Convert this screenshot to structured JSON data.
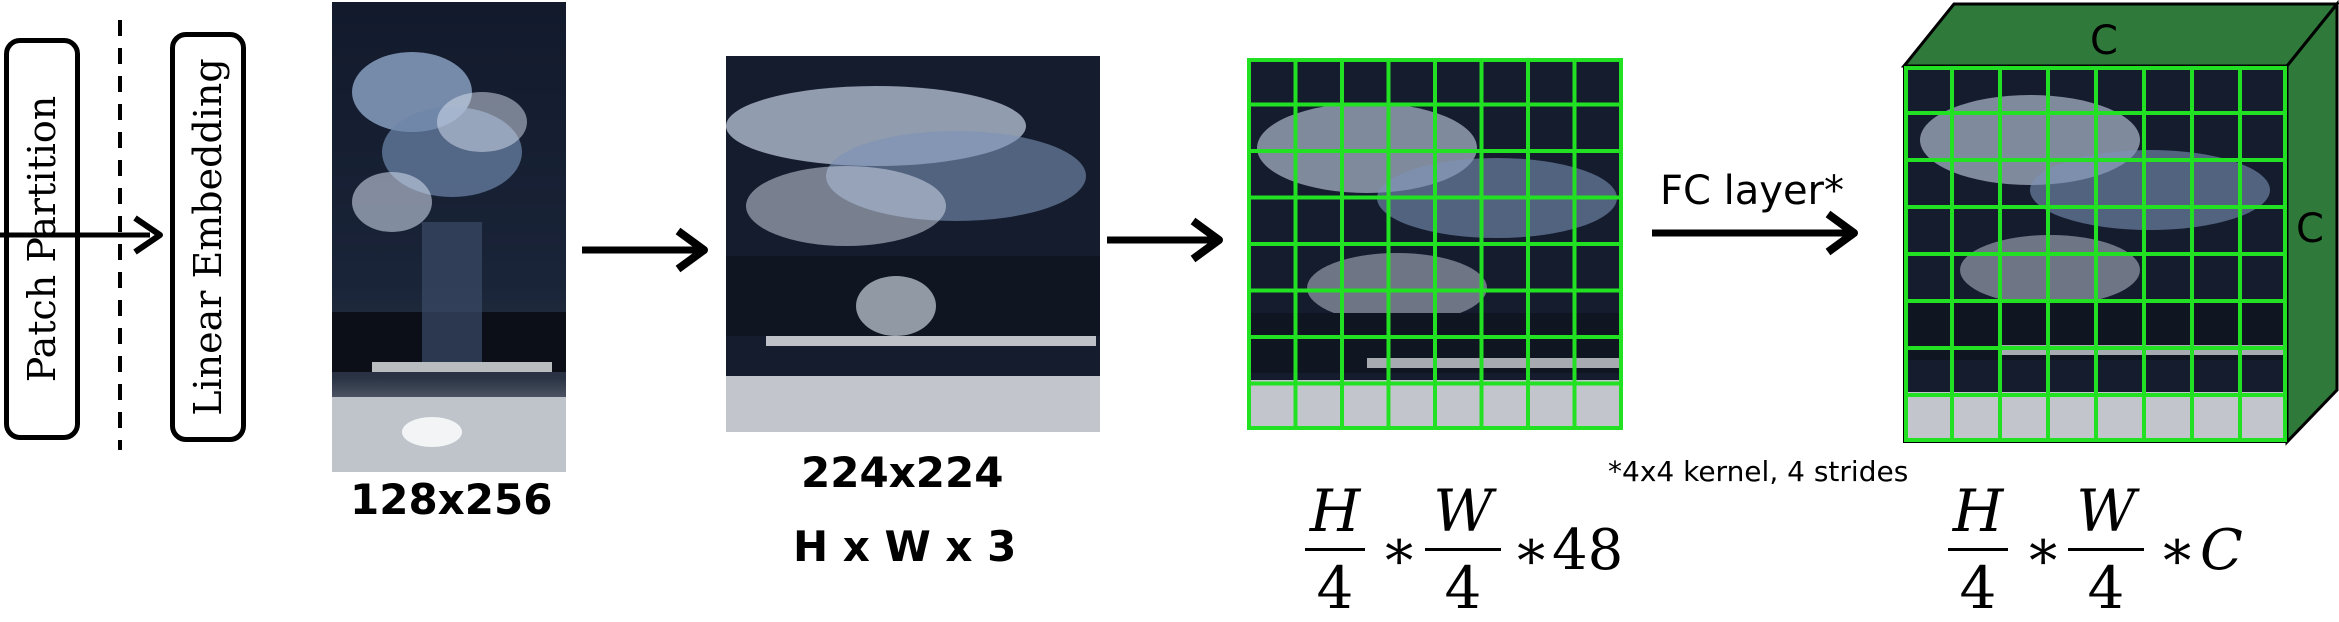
{
  "stages": {
    "patch_partition": "Patch Partition",
    "linear_embedding": "Linear Embedding"
  },
  "input_image": {
    "size_label": "128x256"
  },
  "resized_image": {
    "size_label": "224x224",
    "shape_label": "H x W x 3"
  },
  "fc": {
    "label": "FC layer*",
    "note": "*4x4 kernel, 4 strides"
  },
  "patch_formula": {
    "h_num": "H",
    "h_den": "4",
    "w_num": "W",
    "w_den": "4",
    "mult": "∗",
    "tail": "48"
  },
  "embed_formula": {
    "h_num": "H",
    "h_den": "4",
    "w_num": "W",
    "w_den": "4",
    "mult": "∗",
    "tail": "C"
  },
  "cube": {
    "top_label": "C",
    "side_label": "C",
    "face_color": "#2f7a3b",
    "grid_color": "#22e022"
  },
  "colors": {
    "grid_line": "#22e022",
    "arrow": "#000000"
  }
}
